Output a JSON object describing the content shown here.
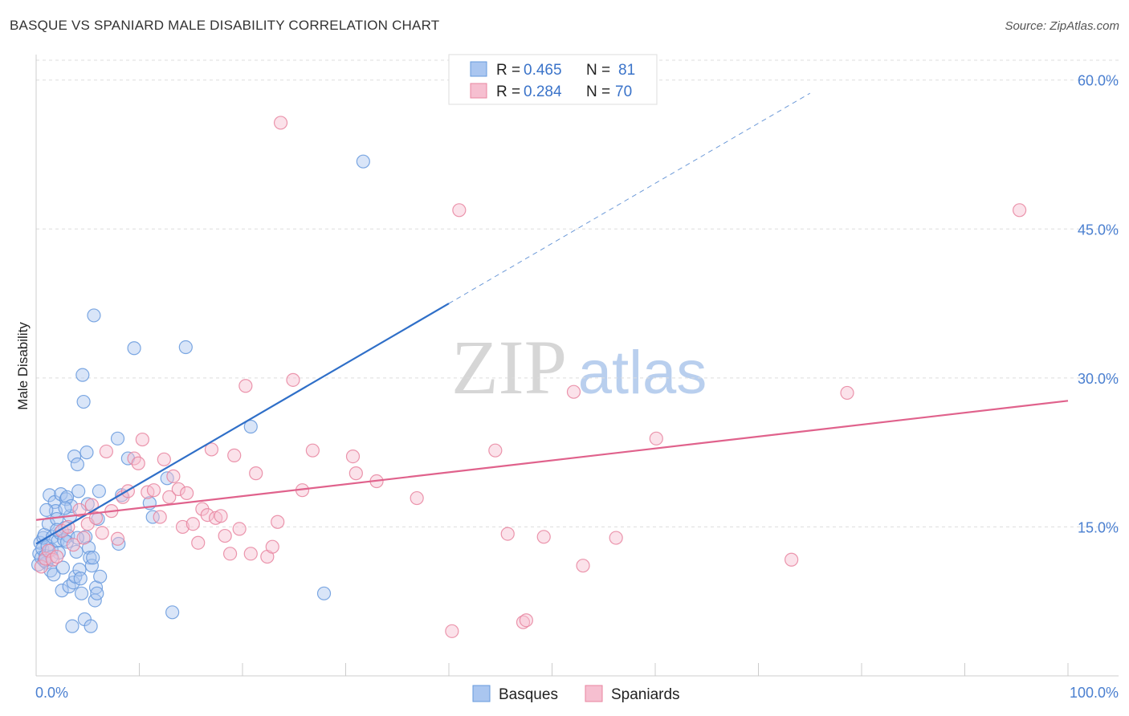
{
  "title": "BASQUE VS SPANIARD MALE DISABILITY CORRELATION CHART",
  "source": "Source: ZipAtlas.com",
  "watermark": {
    "zip": "ZIP",
    "atlas": "atlas"
  },
  "colors": {
    "basque": "#6699dd",
    "basque_fill": "#aac6f0",
    "basque_line": "#2f6fc8",
    "spaniard": "#e8849f",
    "spaniard_fill": "#f6bfd0",
    "spaniard_line": "#e0628c",
    "grid": "#dddddd",
    "tick_label": "#4a7fd0"
  },
  "chart_data": {
    "type": "scatter",
    "title": "BASQUE VS SPANIARD MALE DISABILITY CORRELATION CHART",
    "xlabel": "",
    "ylabel": "Male Disability",
    "xlim": [
      0,
      100
    ],
    "ylim": [
      0,
      62
    ],
    "x_tick_labels": [
      "0.0%",
      "100.0%"
    ],
    "y_ticks": [
      15,
      30,
      45,
      60
    ],
    "y_tick_labels": [
      "15.0%",
      "30.0%",
      "45.0%",
      "60.0%"
    ],
    "grid": true,
    "legend": {
      "placement": "top-center",
      "entries": [
        {
          "r_label": "R = ",
          "r_value": "0.465",
          "n_label": "N = ",
          "n_value": "81"
        },
        {
          "r_label": "R = ",
          "r_value": "0.284",
          "n_label": "N = ",
          "n_value": "70"
        }
      ]
    },
    "bottom_legend": [
      "Basques",
      "Spaniards"
    ],
    "series": [
      {
        "name": "Basques",
        "trend": {
          "x0": 0,
          "y0": 13.3,
          "x1": 40,
          "y1": 37.5,
          "dashed_to_x": 75
        },
        "points": [
          [
            0.2,
            11.2
          ],
          [
            0.3,
            12.3
          ],
          [
            0.4,
            13.4
          ],
          [
            0.5,
            11.9
          ],
          [
            0.6,
            12.8
          ],
          [
            0.7,
            13.9
          ],
          [
            0.8,
            14.2
          ],
          [
            0.9,
            12.1
          ],
          [
            1.0,
            11.4
          ],
          [
            1.1,
            13.1
          ],
          [
            1.2,
            15.3
          ],
          [
            1.3,
            18.2
          ],
          [
            1.4,
            10.6
          ],
          [
            1.5,
            12.7
          ],
          [
            1.6,
            14.0
          ],
          [
            1.7,
            10.2
          ],
          [
            1.8,
            17.5
          ],
          [
            1.9,
            16.6
          ],
          [
            2.0,
            15.8
          ],
          [
            2.1,
            13.6
          ],
          [
            2.2,
            12.4
          ],
          [
            2.3,
            14.4
          ],
          [
            2.4,
            18.3
          ],
          [
            2.5,
            8.6
          ],
          [
            2.6,
            10.9
          ],
          [
            2.7,
            13.7
          ],
          [
            2.8,
            14.9
          ],
          [
            2.9,
            17.8
          ],
          [
            3.0,
            18.0
          ],
          [
            3.1,
            14.1
          ],
          [
            3.2,
            9.0
          ],
          [
            3.3,
            16.1
          ],
          [
            3.4,
            17.1
          ],
          [
            3.5,
            5.0
          ],
          [
            3.6,
            9.4
          ],
          [
            3.7,
            22.1
          ],
          [
            3.8,
            10.0
          ],
          [
            3.9,
            12.5
          ],
          [
            4.0,
            21.3
          ],
          [
            4.1,
            18.6
          ],
          [
            4.2,
            10.7
          ],
          [
            4.3,
            9.8
          ],
          [
            4.4,
            8.3
          ],
          [
            4.5,
            30.3
          ],
          [
            4.6,
            27.6
          ],
          [
            4.7,
            5.7
          ],
          [
            4.8,
            14.0
          ],
          [
            4.9,
            22.5
          ],
          [
            5.0,
            17.3
          ],
          [
            5.1,
            12.9
          ],
          [
            5.2,
            11.9
          ],
          [
            5.3,
            5.0
          ],
          [
            5.4,
            11.1
          ],
          [
            5.5,
            11.9
          ],
          [
            5.6,
            36.3
          ],
          [
            5.7,
            7.6
          ],
          [
            5.8,
            8.9
          ],
          [
            5.9,
            8.3
          ],
          [
            6.0,
            15.8
          ],
          [
            6.1,
            18.6
          ],
          [
            6.2,
            10.0
          ],
          [
            7.9,
            23.9
          ],
          [
            8.0,
            13.3
          ],
          [
            8.3,
            18.2
          ],
          [
            8.9,
            21.9
          ],
          [
            9.5,
            33.0
          ],
          [
            11.0,
            17.4
          ],
          [
            11.3,
            16.0
          ],
          [
            12.7,
            19.9
          ],
          [
            13.2,
            6.4
          ],
          [
            14.5,
            33.1
          ],
          [
            20.8,
            25.1
          ],
          [
            27.9,
            8.3
          ],
          [
            31.7,
            51.8
          ],
          [
            1.0,
            16.7
          ],
          [
            2.0,
            14.7
          ],
          [
            3.0,
            13.5
          ],
          [
            4.0,
            13.9
          ],
          [
            1.5,
            12.0
          ],
          [
            0.8,
            11.6
          ],
          [
            2.8,
            16.9
          ]
        ]
      },
      {
        "name": "Spaniards",
        "trend": {
          "x0": 0,
          "y0": 15.7,
          "x1": 100,
          "y1": 27.7
        },
        "points": [
          [
            0.5,
            11.0
          ],
          [
            0.9,
            11.8
          ],
          [
            1.2,
            12.6
          ],
          [
            1.6,
            11.7
          ],
          [
            2.0,
            12.0
          ],
          [
            2.5,
            14.6
          ],
          [
            3.1,
            15.0
          ],
          [
            3.6,
            13.2
          ],
          [
            4.2,
            16.7
          ],
          [
            4.6,
            13.9
          ],
          [
            5.0,
            15.3
          ],
          [
            5.4,
            17.2
          ],
          [
            5.8,
            15.9
          ],
          [
            6.4,
            14.4
          ],
          [
            6.8,
            22.6
          ],
          [
            7.3,
            16.6
          ],
          [
            7.9,
            13.8
          ],
          [
            8.4,
            18.0
          ],
          [
            8.9,
            18.6
          ],
          [
            9.5,
            21.9
          ],
          [
            9.9,
            21.4
          ],
          [
            10.3,
            23.8
          ],
          [
            10.8,
            18.5
          ],
          [
            11.4,
            18.7
          ],
          [
            12.0,
            16.0
          ],
          [
            12.4,
            21.8
          ],
          [
            12.9,
            18.0
          ],
          [
            13.3,
            20.1
          ],
          [
            13.8,
            18.8
          ],
          [
            14.2,
            15.0
          ],
          [
            14.6,
            18.4
          ],
          [
            15.2,
            15.3
          ],
          [
            15.7,
            13.4
          ],
          [
            16.1,
            16.8
          ],
          [
            16.6,
            16.2
          ],
          [
            17.0,
            22.8
          ],
          [
            17.4,
            15.9
          ],
          [
            17.9,
            16.1
          ],
          [
            18.3,
            14.1
          ],
          [
            18.8,
            12.3
          ],
          [
            19.2,
            22.2
          ],
          [
            19.7,
            14.8
          ],
          [
            20.3,
            29.2
          ],
          [
            20.8,
            12.3
          ],
          [
            21.3,
            20.4
          ],
          [
            22.4,
            12.0
          ],
          [
            22.9,
            13.0
          ],
          [
            23.4,
            15.5
          ],
          [
            23.7,
            55.7
          ],
          [
            24.9,
            29.8
          ],
          [
            25.8,
            18.7
          ],
          [
            26.8,
            22.7
          ],
          [
            30.7,
            22.1
          ],
          [
            31.0,
            20.4
          ],
          [
            33.0,
            19.6
          ],
          [
            36.9,
            17.9
          ],
          [
            40.3,
            4.5
          ],
          [
            41.0,
            46.9
          ],
          [
            44.5,
            22.7
          ],
          [
            45.7,
            14.3
          ],
          [
            47.2,
            5.4
          ],
          [
            47.5,
            5.6
          ],
          [
            49.2,
            14.0
          ],
          [
            52.1,
            28.6
          ],
          [
            53.0,
            11.1
          ],
          [
            56.2,
            13.9
          ],
          [
            60.1,
            23.9
          ],
          [
            73.2,
            11.7
          ],
          [
            78.6,
            28.5
          ],
          [
            95.3,
            46.9
          ]
        ]
      }
    ]
  }
}
